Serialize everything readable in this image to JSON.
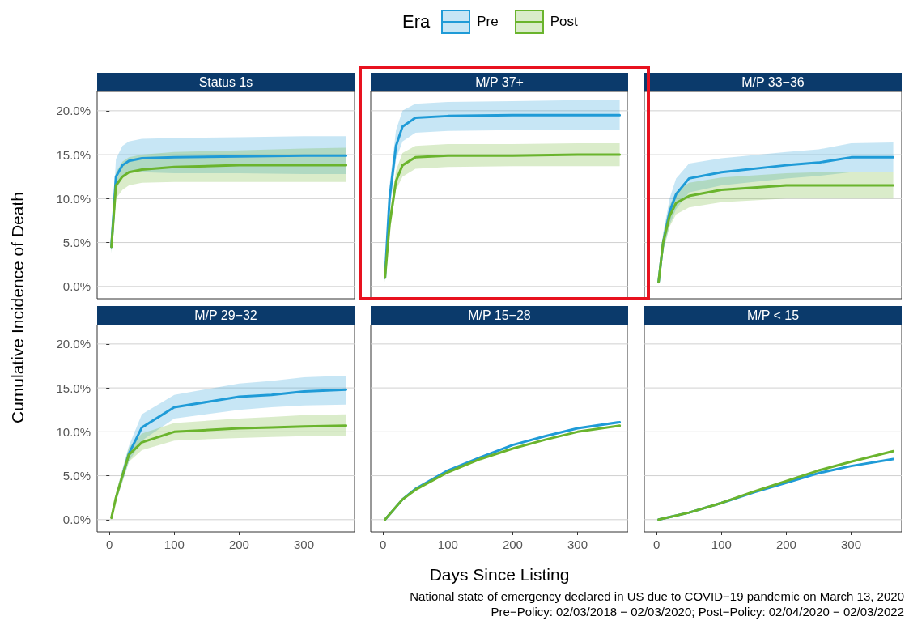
{
  "chart_data": [
    {
      "type": "line",
      "title": "Status 1s",
      "legend": "top",
      "legend_title": "Era",
      "ylabel": "Cumulative Incidence of Death",
      "grid": "y",
      "tick_labels": "y",
      "xlim": [
        -19,
        378
      ],
      "ylim": [
        -1.4,
        22.2
      ],
      "xticks": [
        0,
        100,
        200,
        300
      ],
      "yticks": [
        {
          "value": 0,
          "label": "0.0%"
        },
        {
          "value": 5,
          "label": "5.0%"
        },
        {
          "value": 10,
          "label": "10.0%"
        },
        {
          "value": 15,
          "label": "15.0%"
        },
        {
          "value": 20,
          "label": "20.0%"
        }
      ],
      "x": [
        3,
        10,
        20,
        30,
        50,
        100,
        200,
        300,
        365
      ],
      "series": [
        {
          "name": "Pre",
          "color": "#1f9bd7",
          "values": [
            4.5,
            12.5,
            13.8,
            14.3,
            14.6,
            14.7,
            14.8,
            14.9,
            14.9
          ],
          "lower": [
            3.8,
            11,
            12.4,
            13,
            13,
            12.9,
            12.9,
            12.8,
            12.8
          ],
          "upper": [
            5.5,
            14.5,
            16,
            16.5,
            16.8,
            16.9,
            17,
            17.1,
            17.1
          ]
        },
        {
          "name": "Post",
          "color": "#6ab42d",
          "values": [
            4.5,
            11.5,
            12.5,
            13,
            13.3,
            13.6,
            13.8,
            13.8,
            13.8
          ],
          "lower": [
            3.8,
            10,
            11,
            11.5,
            11.8,
            11.9,
            11.9,
            11.9,
            11.9
          ],
          "upper": [
            5.5,
            13,
            14.2,
            14.7,
            15,
            15.3,
            15.5,
            15.7,
            15.8
          ]
        }
      ]
    },
    {
      "type": "line",
      "title": "M/P 37+",
      "grid": "y",
      "tick_labels": false,
      "xlim": [
        -19,
        378
      ],
      "ylim": [
        -1.4,
        22.2
      ],
      "xticks": [
        0,
        100,
        200,
        300
      ],
      "yticks": [
        0,
        5,
        10,
        15,
        20
      ],
      "x": [
        3,
        10,
        20,
        30,
        50,
        100,
        200,
        300,
        365
      ],
      "series": [
        {
          "color": "#1f9bd7",
          "values": [
            1,
            10,
            16,
            18.2,
            19.2,
            19.4,
            19.5,
            19.5,
            19.5
          ],
          "lower": [
            0.5,
            8.5,
            14.5,
            16.5,
            17.5,
            17.7,
            17.8,
            17.8,
            17.8
          ],
          "upper": [
            1.5,
            11.5,
            17.8,
            20,
            20.8,
            21,
            21.1,
            21.2,
            21.2
          ]
        },
        {
          "color": "#6ab42d",
          "values": [
            1,
            7,
            12,
            13.8,
            14.7,
            14.9,
            14.9,
            15,
            15
          ],
          "lower": [
            0.5,
            6,
            11,
            12.5,
            13.4,
            13.6,
            13.7,
            13.7,
            13.7
          ],
          "upper": [
            1.5,
            8,
            13.2,
            15.2,
            16,
            16.2,
            16.2,
            16.3,
            16.3
          ]
        }
      ]
    },
    {
      "type": "line",
      "title": "M/P 33−36",
      "grid": "y",
      "tick_labels": false,
      "xlim": [
        -19,
        378
      ],
      "ylim": [
        -1.4,
        22.2
      ],
      "xticks": [
        0,
        100,
        200,
        300
      ],
      "yticks": [
        0,
        5,
        10,
        15,
        20
      ],
      "x": [
        3,
        10,
        20,
        30,
        50,
        100,
        200,
        250,
        300,
        365
      ],
      "series": [
        {
          "color": "#1f9bd7",
          "values": [
            0.5,
            5,
            8.5,
            10.5,
            12.3,
            13,
            13.8,
            14.1,
            14.7,
            14.7
          ],
          "lower": [
            0.2,
            4,
            7,
            8.8,
            10.7,
            11.5,
            12.3,
            12.6,
            13,
            13
          ],
          "upper": [
            0.8,
            6,
            10,
            12.3,
            14,
            14.6,
            15.3,
            15.6,
            16.3,
            16.4
          ]
        },
        {
          "color": "#6ab42d",
          "values": [
            0.5,
            5,
            8,
            9.5,
            10.3,
            11,
            11.5,
            11.5,
            11.5,
            11.5
          ],
          "lower": [
            0.2,
            4,
            6.8,
            8.2,
            9,
            9.6,
            10,
            10,
            10,
            10
          ],
          "upper": [
            0.8,
            6,
            9.2,
            10.8,
            11.8,
            12.4,
            12.9,
            13,
            13,
            13
          ]
        }
      ]
    },
    {
      "type": "line",
      "title": "M/P 29−32",
      "grid": "y",
      "xlim": [
        -19,
        378
      ],
      "ylim": [
        -1.4,
        22.2
      ],
      "xticks": [
        0,
        100,
        200,
        300
      ],
      "yticks": [
        {
          "value": 0,
          "label": "0.0%"
        },
        {
          "value": 5,
          "label": "5.0%"
        },
        {
          "value": 10,
          "label": "10.0%"
        },
        {
          "value": 15,
          "label": "15.0%"
        },
        {
          "value": 20,
          "label": "20.0%"
        }
      ],
      "x": [
        3,
        10,
        20,
        30,
        50,
        100,
        200,
        250,
        300,
        365
      ],
      "series": [
        {
          "color": "#1f9bd7",
          "values": [
            null,
            null,
            5,
            7.5,
            10.5,
            12.8,
            14,
            14.2,
            14.6,
            14.8
          ],
          "lower": [
            0.1,
            2,
            4.3,
            6.6,
            9,
            11.5,
            12.5,
            12.8,
            13,
            13.1
          ],
          "upper": [
            0.3,
            3,
            5.7,
            8.4,
            12,
            14.2,
            15.5,
            15.8,
            16.2,
            16.4
          ]
        },
        {
          "color": "#6ab42d",
          "values": [
            0.2,
            2.5,
            5,
            7.4,
            8.8,
            10,
            10.4,
            10.5,
            10.6,
            10.7
          ],
          "lower": [
            0.1,
            2,
            4.3,
            6.6,
            7.9,
            9,
            9.3,
            9.4,
            9.5,
            9.5
          ],
          "upper": [
            0.3,
            3,
            5.7,
            8.2,
            9.8,
            11,
            11.5,
            11.7,
            11.9,
            12
          ]
        }
      ]
    },
    {
      "type": "line",
      "title": "M/P 15−28",
      "xlabel": "Days Since Listing",
      "annotations": [
        "National state of emergency declared in US due to COVID−19 pandemic on March 13, 2020",
        "Pre−Policy: 02/03/2018 − 02/03/2020; Post−Policy: 02/04/2020 − 02/03/2022"
      ],
      "grid": "y",
      "tick_labels": "x",
      "xlim": [
        -19,
        378
      ],
      "ylim": [
        -1.4,
        22.2
      ],
      "xticks": [
        0,
        100,
        200,
        300
      ],
      "yticks": [
        0,
        5,
        10,
        15,
        20
      ],
      "x": [
        3,
        30,
        50,
        100,
        150,
        200,
        250,
        300,
        365
      ],
      "series": [
        {
          "color": "#1f9bd7",
          "values": [
            0,
            2.3,
            3.5,
            5.6,
            7.1,
            8.5,
            9.5,
            10.4,
            11.1
          ]
        },
        {
          "color": "#6ab42d",
          "values": [
            0,
            2.3,
            3.4,
            5.4,
            6.9,
            8.1,
            9.1,
            10,
            10.7
          ]
        }
      ]
    },
    {
      "type": "line",
      "title": "M/P < 15",
      "grid": "y",
      "tick_labels": "x",
      "xlim": [
        -19,
        378
      ],
      "ylim": [
        -1.4,
        22.2
      ],
      "xticks": [
        0,
        100,
        200,
        300
      ],
      "yticks": [
        0,
        5,
        10,
        15,
        20
      ],
      "x": [
        3,
        50,
        100,
        150,
        200,
        250,
        300,
        365
      ],
      "series": [
        {
          "color": "#1f9bd7",
          "values": [
            0,
            0.8,
            1.9,
            3.1,
            4.2,
            5.3,
            6.1,
            6.9
          ]
        },
        {
          "color": "#6ab42d",
          "values": [
            0,
            0.8,
            1.9,
            3.2,
            4.4,
            5.6,
            6.6,
            7.8
          ]
        }
      ]
    }
  ]
}
